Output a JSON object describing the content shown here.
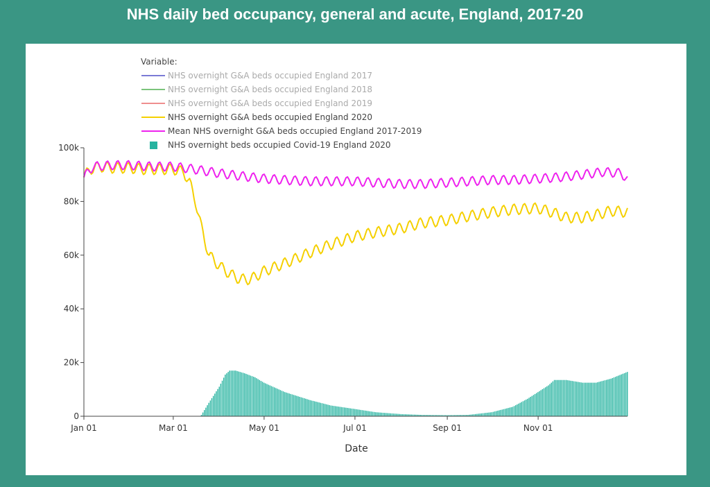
{
  "page": {
    "title": "NHS daily bed occupancy, general and acute, England, 2017-20"
  },
  "chart_data": {
    "type": "line",
    "title": "NHS daily bed occupancy, general and acute, England, 2017-20",
    "xlabel": "Date",
    "ylabel": "",
    "x_type": "date",
    "xlim": [
      "2020-01-01",
      "2020-12-31"
    ],
    "ylim": [
      0,
      100000
    ],
    "x_ticks": [
      {
        "date": "2020-01-01",
        "label": "Jan 01"
      },
      {
        "date": "2020-03-01",
        "label": "Mar 01"
      },
      {
        "date": "2020-05-01",
        "label": "May 01"
      },
      {
        "date": "2020-07-01",
        "label": "Jul 01"
      },
      {
        "date": "2020-09-01",
        "label": "Sep 01"
      },
      {
        "date": "2020-11-01",
        "label": "Nov 01"
      }
    ],
    "y_ticks": [
      {
        "value": 0,
        "label": "0"
      },
      {
        "value": 20000,
        "label": "20k"
      },
      {
        "value": 40000,
        "label": "40k"
      },
      {
        "value": 60000,
        "label": "60k"
      },
      {
        "value": 80000,
        "label": "80k"
      },
      {
        "value": 100000,
        "label": "100k"
      }
    ],
    "grid": false,
    "legend": {
      "title": "Variable:",
      "placement": "top-left",
      "entries": [
        {
          "name": "NHS overnight G&A beds occupied England 2017",
          "color": "#7b7bd6",
          "symbol": "line",
          "hidden": true
        },
        {
          "name": "NHS overnight G&A beds occupied England 2018",
          "color": "#7bc47b",
          "symbol": "line",
          "hidden": true
        },
        {
          "name": "NHS overnight G&A beds occupied England 2019",
          "color": "#ef8e8e",
          "symbol": "line",
          "hidden": true
        },
        {
          "name": "NHS overnight G&A beds occupied England 2020",
          "color": "#f5d000",
          "symbol": "line",
          "hidden": false
        },
        {
          "name": "Mean NHS overnight G&A beds occupied England 2017-2019",
          "color": "#ee22ee",
          "symbol": "line",
          "hidden": false
        },
        {
          "name": "NHS overnight beds occupied Covid-19 England 2020",
          "color": "#26b3a0",
          "symbol": "square",
          "hidden": false
        }
      ]
    },
    "series": [
      {
        "name": "NHS overnight G&A beds occupied England 2020",
        "type": "line",
        "color": "#f5d000",
        "weekly_amplitude": 2000,
        "x": [
          "2020-01-01",
          "2020-01-05",
          "2020-01-12",
          "2020-01-20",
          "2020-02-01",
          "2020-02-10",
          "2020-02-20",
          "2020-03-01",
          "2020-03-08",
          "2020-03-12",
          "2020-03-16",
          "2020-03-20",
          "2020-03-25",
          "2020-04-01",
          "2020-04-08",
          "2020-04-15",
          "2020-04-22",
          "2020-05-01",
          "2020-05-15",
          "2020-06-01",
          "2020-06-15",
          "2020-07-01",
          "2020-07-15",
          "2020-08-01",
          "2020-08-15",
          "2020-09-01",
          "2020-09-15",
          "2020-10-01",
          "2020-10-15",
          "2020-11-01",
          "2020-11-10",
          "2020-11-20",
          "2020-12-01",
          "2020-12-10",
          "2020-12-20",
          "2020-12-31"
        ],
        "y": [
          89000,
          92000,
          93000,
          92500,
          92500,
          92000,
          92000,
          92000,
          91000,
          87000,
          80000,
          70000,
          60000,
          56000,
          53000,
          51000,
          51000,
          54000,
          57000,
          61000,
          64000,
          67000,
          68500,
          70000,
          72000,
          73000,
          74500,
          76000,
          77000,
          77500,
          76000,
          74000,
          74000,
          75000,
          76500,
          76000
        ]
      },
      {
        "name": "Mean NHS overnight G&A beds occupied England 2017-2019",
        "type": "line",
        "color": "#ee22ee",
        "weekly_amplitude": 1700,
        "x": [
          "2020-01-01",
          "2020-01-07",
          "2020-01-20",
          "2020-02-01",
          "2020-02-15",
          "2020-03-01",
          "2020-03-15",
          "2020-04-01",
          "2020-04-15",
          "2020-05-01",
          "2020-05-15",
          "2020-06-01",
          "2020-06-15",
          "2020-07-01",
          "2020-07-15",
          "2020-08-01",
          "2020-08-15",
          "2020-09-01",
          "2020-09-15",
          "2020-10-01",
          "2020-10-15",
          "2020-11-01",
          "2020-11-15",
          "2020-12-01",
          "2020-12-15",
          "2020-12-27",
          "2020-12-31"
        ],
        "y": [
          89000,
          93000,
          93500,
          93500,
          93000,
          93000,
          92000,
          90500,
          89500,
          88500,
          88000,
          87500,
          87500,
          87500,
          87000,
          86500,
          86500,
          87000,
          87500,
          88000,
          88000,
          88500,
          89000,
          90000,
          91000,
          90500,
          88000
        ]
      },
      {
        "name": "NHS overnight beds occupied Covid-19 England 2020",
        "type": "bar",
        "color": "#26b3a0",
        "x": [
          "2020-03-20",
          "2020-03-25",
          "2020-04-01",
          "2020-04-05",
          "2020-04-08",
          "2020-04-12",
          "2020-04-18",
          "2020-04-25",
          "2020-05-01",
          "2020-05-15",
          "2020-06-01",
          "2020-06-15",
          "2020-07-01",
          "2020-07-15",
          "2020-08-01",
          "2020-08-15",
          "2020-09-01",
          "2020-09-15",
          "2020-10-01",
          "2020-10-15",
          "2020-10-25",
          "2020-11-01",
          "2020-11-08",
          "2020-11-12",
          "2020-11-20",
          "2020-12-01",
          "2020-12-10",
          "2020-12-20",
          "2020-12-31"
        ],
        "y": [
          500,
          5000,
          11000,
          15500,
          17000,
          17000,
          16000,
          14500,
          12500,
          9000,
          6000,
          4000,
          2700,
          1500,
          800,
          500,
          400,
          500,
          1500,
          3500,
          6500,
          9000,
          11500,
          13500,
          13500,
          12500,
          12500,
          14000,
          16500
        ]
      }
    ]
  }
}
